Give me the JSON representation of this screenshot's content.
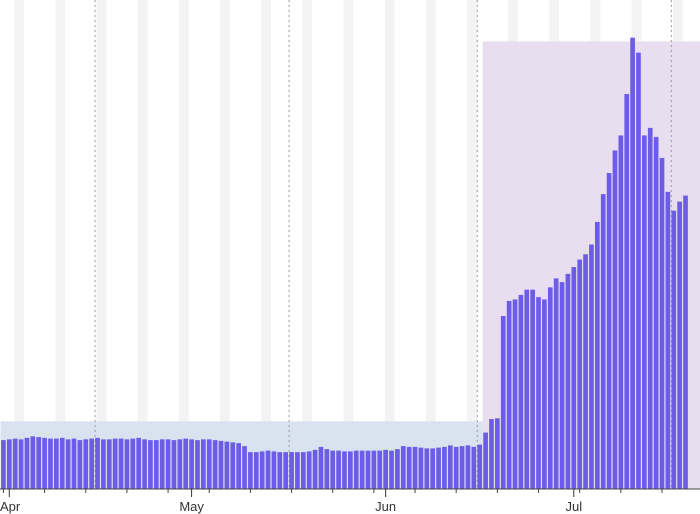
{
  "chart_data": {
    "type": "bar",
    "title": "",
    "xlabel": "",
    "ylabel": "",
    "x_tick_labels": [
      "Apr",
      "May",
      "Jun",
      "Jul"
    ],
    "grid": false,
    "weekend_shading": true,
    "regions": [
      {
        "kind": "baseline-band",
        "start_index": 0,
        "end_index": 81,
        "ylim": [
          0,
          90
        ],
        "color": "#d9e3ef"
      },
      {
        "kind": "highlight-period",
        "start_index": 82,
        "end_index": 121,
        "ylim": [
          0,
          595
        ],
        "color": "#e8def0"
      }
    ],
    "ylim": [
      0,
      650
    ],
    "bar_color": "#6c5ce7",
    "values": [
      65,
      66,
      67,
      66,
      68,
      70,
      69,
      68,
      67,
      67,
      68,
      66,
      67,
      65,
      66,
      67,
      68,
      66,
      66,
      67,
      67,
      66,
      67,
      68,
      66,
      65,
      65,
      66,
      66,
      65,
      66,
      67,
      66,
      65,
      66,
      66,
      65,
      64,
      63,
      62,
      61,
      57,
      49,
      49,
      50,
      51,
      50,
      49,
      49,
      49,
      49,
      49,
      50,
      52,
      56,
      53,
      51,
      51,
      50,
      50,
      51,
      51,
      51,
      51,
      51,
      52,
      51,
      53,
      57,
      56,
      56,
      55,
      54,
      54,
      55,
      56,
      58,
      56,
      57,
      58,
      56,
      59,
      75,
      93,
      94,
      230,
      250,
      252,
      258,
      265,
      265,
      255,
      252,
      268,
      280,
      275,
      286,
      295,
      305,
      312,
      325,
      355,
      392,
      420,
      450,
      470,
      525,
      600,
      580,
      470,
      480,
      468,
      440,
      395,
      370,
      382,
      390
    ],
    "weekend_start_indices": [
      2,
      9,
      16,
      23,
      30,
      37,
      44,
      51,
      58,
      65,
      72,
      79,
      86,
      93,
      100,
      107,
      114
    ],
    "major_tick_indices": [
      1,
      32,
      65,
      97
    ],
    "dashed_line_indices": [
      16,
      49,
      81,
      114
    ]
  }
}
